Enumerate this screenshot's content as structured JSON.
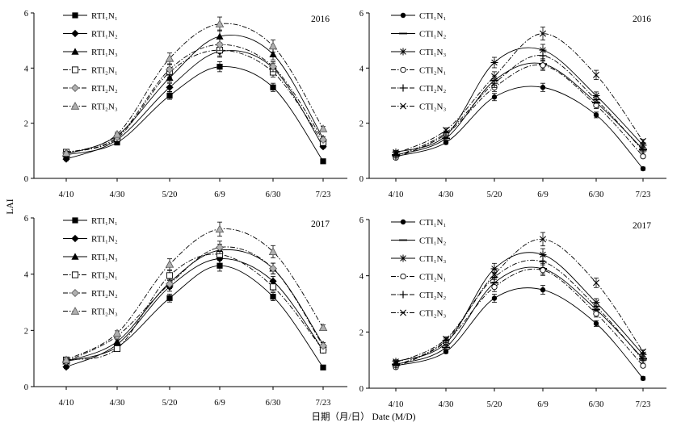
{
  "figure": {
    "ylabel": "LAI",
    "xlabel": "日期（月/日） Date (M/D)"
  },
  "chart_data": [
    {
      "type": "line",
      "year": "2016",
      "x": [
        "4/10",
        "4/30",
        "5/20",
        "6/9",
        "6/30",
        "7/23"
      ],
      "ylim": [
        0,
        6
      ],
      "yticks": [
        "0",
        "2",
        "4",
        "6"
      ],
      "series": [
        {
          "name": "RTI₁N₁",
          "values": [
            0.85,
            1.3,
            3.0,
            4.05,
            3.3,
            0.62
          ],
          "marker": "square-filled",
          "dash": "solid"
        },
        {
          "name": "RTI₁N₂",
          "values": [
            0.7,
            1.4,
            3.3,
            4.6,
            4.0,
            1.15
          ],
          "marker": "diamond-filled",
          "dash": "solid"
        },
        {
          "name": "RTI₁N₃",
          "values": [
            0.88,
            1.55,
            3.65,
            5.15,
            4.5,
            1.45
          ],
          "marker": "triangle-filled",
          "dash": "solid"
        },
        {
          "name": "RTI₂N₁",
          "values": [
            0.95,
            1.45,
            3.85,
            4.65,
            3.85,
            1.3
          ],
          "marker": "square-open",
          "dash": "dashdot"
        },
        {
          "name": "RTI₂N₂",
          "values": [
            0.92,
            1.5,
            3.95,
            4.85,
            4.05,
            1.4
          ],
          "marker": "diamond-grey",
          "dash": "dashdot"
        },
        {
          "name": "RTI₂N₃",
          "values": [
            0.92,
            1.6,
            4.35,
            5.6,
            4.8,
            1.8
          ],
          "marker": "triangle-grey",
          "dash": "dashdot"
        }
      ]
    },
    {
      "type": "line",
      "year": "2016",
      "x": [
        "4/10",
        "4/30",
        "5/20",
        "6/9",
        "6/30",
        "7/23"
      ],
      "ylim": [
        0,
        6
      ],
      "yticks": [
        "0",
        "2",
        "4",
        "6"
      ],
      "series": [
        {
          "name": "CTI₁N₁",
          "values": [
            0.8,
            1.3,
            2.95,
            3.3,
            2.3,
            0.35
          ],
          "marker": "circle-filled",
          "dash": "solid"
        },
        {
          "name": "CTI₁N₂",
          "values": [
            0.85,
            1.45,
            3.55,
            4.15,
            2.75,
            1.05
          ],
          "marker": "dash",
          "dash": "solid"
        },
        {
          "name": "CTI₁N₃",
          "values": [
            0.95,
            1.55,
            4.2,
            4.65,
            3.0,
            1.2
          ],
          "marker": "asterisk",
          "dash": "solid"
        },
        {
          "name": "CTI₂N₁",
          "values": [
            0.75,
            1.6,
            3.3,
            4.1,
            2.65,
            0.8
          ],
          "marker": "circle-open",
          "dash": "dashdot"
        },
        {
          "name": "CTI₂N₂",
          "values": [
            0.8,
            1.65,
            3.45,
            4.45,
            2.85,
            1.0
          ],
          "marker": "plus",
          "dash": "dashdot"
        },
        {
          "name": "CTI₂N₃",
          "values": [
            0.9,
            1.75,
            3.7,
            5.25,
            3.75,
            1.35
          ],
          "marker": "cross",
          "dash": "dashdot"
        }
      ]
    },
    {
      "type": "line",
      "year": "2017",
      "x": [
        "4/10",
        "4/30",
        "5/20",
        "6/9",
        "6/30",
        "7/23"
      ],
      "ylim": [
        0,
        6
      ],
      "yticks": [
        "0",
        "2",
        "4",
        "6"
      ],
      "series": [
        {
          "name": "RTI₁N₁",
          "values": [
            0.9,
            1.4,
            3.15,
            4.3,
            3.2,
            0.68
          ],
          "marker": "square-filled",
          "dash": "solid"
        },
        {
          "name": "RTI₁N₂",
          "values": [
            0.7,
            1.5,
            3.55,
            4.55,
            3.75,
            1.3
          ],
          "marker": "diamond-filled",
          "dash": "solid"
        },
        {
          "name": "RTI₁N₃",
          "values": [
            0.9,
            1.6,
            3.7,
            4.85,
            4.2,
            1.5
          ],
          "marker": "triangle-filled",
          "dash": "solid"
        },
        {
          "name": "RTI₂N₁",
          "values": [
            0.95,
            1.35,
            3.95,
            4.7,
            3.55,
            1.3
          ],
          "marker": "square-open",
          "dash": "dashdot"
        },
        {
          "name": "RTI₂N₂",
          "values": [
            0.9,
            1.8,
            3.65,
            4.95,
            4.2,
            1.45
          ],
          "marker": "diamond-grey",
          "dash": "dashdot"
        },
        {
          "name": "RTI₂N₃",
          "values": [
            0.95,
            1.9,
            4.35,
            5.6,
            4.8,
            2.1
          ],
          "marker": "triangle-grey",
          "dash": "dashdot"
        }
      ]
    },
    {
      "type": "line",
      "year": "2017",
      "x": [
        "4/10",
        "4/30",
        "5/20",
        "6/9",
        "6/30",
        "7/23"
      ],
      "ylim": [
        0,
        6
      ],
      "yticks": [
        "0",
        "2",
        "4",
        "6"
      ],
      "series": [
        {
          "name": "CTI₁N₁",
          "values": [
            0.8,
            1.3,
            3.2,
            3.5,
            2.3,
            0.35
          ],
          "marker": "circle-filled",
          "dash": "solid"
        },
        {
          "name": "CTI₁N₂",
          "values": [
            0.85,
            1.45,
            3.75,
            4.25,
            2.8,
            1.05
          ],
          "marker": "dash",
          "dash": "solid"
        },
        {
          "name": "CTI₁N₃",
          "values": [
            0.95,
            1.6,
            4.25,
            4.75,
            3.05,
            1.2
          ],
          "marker": "asterisk",
          "dash": "solid"
        },
        {
          "name": "CTI₂N₁",
          "values": [
            0.75,
            1.65,
            3.6,
            4.2,
            2.65,
            0.8
          ],
          "marker": "circle-open",
          "dash": "dashdot"
        },
        {
          "name": "CTI₂N₂",
          "values": [
            0.8,
            1.7,
            3.95,
            4.5,
            2.9,
            1.0
          ],
          "marker": "plus",
          "dash": "dashdot"
        },
        {
          "name": "CTI₂N₃",
          "values": [
            0.9,
            1.75,
            4.05,
            5.3,
            3.75,
            1.3
          ],
          "marker": "cross",
          "dash": "dashdot"
        }
      ]
    }
  ]
}
